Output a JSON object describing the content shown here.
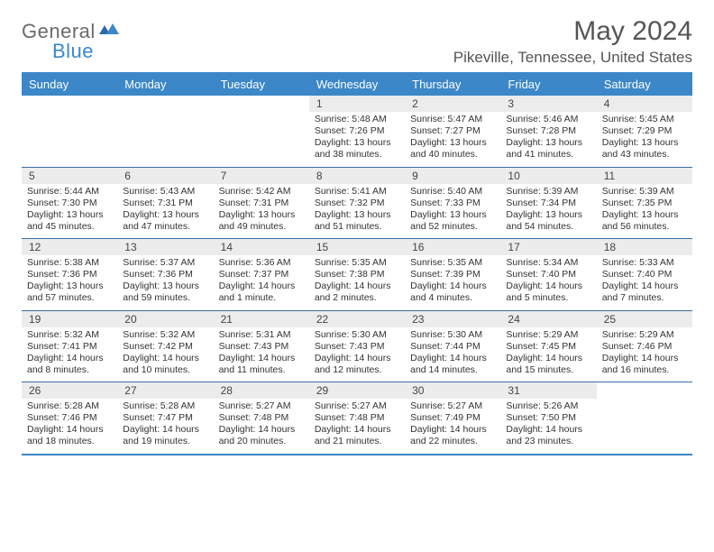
{
  "logo": {
    "text1": "General",
    "text2": "Blue"
  },
  "title": "May 2024",
  "location": "Pikeville, Tennessee, United States",
  "colors": {
    "brand": "#3b87c8",
    "headerText": "#ffffff",
    "dayNumBg": "#ececec",
    "border": "#3b6fa0"
  },
  "dow": [
    "Sunday",
    "Monday",
    "Tuesday",
    "Wednesday",
    "Thursday",
    "Friday",
    "Saturday"
  ],
  "weeks": [
    [
      null,
      null,
      null,
      {
        "n": "1",
        "sr": "5:48 AM",
        "ss": "7:26 PM",
        "dl": "13 hours and 38 minutes."
      },
      {
        "n": "2",
        "sr": "5:47 AM",
        "ss": "7:27 PM",
        "dl": "13 hours and 40 minutes."
      },
      {
        "n": "3",
        "sr": "5:46 AM",
        "ss": "7:28 PM",
        "dl": "13 hours and 41 minutes."
      },
      {
        "n": "4",
        "sr": "5:45 AM",
        "ss": "7:29 PM",
        "dl": "13 hours and 43 minutes."
      }
    ],
    [
      {
        "n": "5",
        "sr": "5:44 AM",
        "ss": "7:30 PM",
        "dl": "13 hours and 45 minutes."
      },
      {
        "n": "6",
        "sr": "5:43 AM",
        "ss": "7:31 PM",
        "dl": "13 hours and 47 minutes."
      },
      {
        "n": "7",
        "sr": "5:42 AM",
        "ss": "7:31 PM",
        "dl": "13 hours and 49 minutes."
      },
      {
        "n": "8",
        "sr": "5:41 AM",
        "ss": "7:32 PM",
        "dl": "13 hours and 51 minutes."
      },
      {
        "n": "9",
        "sr": "5:40 AM",
        "ss": "7:33 PM",
        "dl": "13 hours and 52 minutes."
      },
      {
        "n": "10",
        "sr": "5:39 AM",
        "ss": "7:34 PM",
        "dl": "13 hours and 54 minutes."
      },
      {
        "n": "11",
        "sr": "5:39 AM",
        "ss": "7:35 PM",
        "dl": "13 hours and 56 minutes."
      }
    ],
    [
      {
        "n": "12",
        "sr": "5:38 AM",
        "ss": "7:36 PM",
        "dl": "13 hours and 57 minutes."
      },
      {
        "n": "13",
        "sr": "5:37 AM",
        "ss": "7:36 PM",
        "dl": "13 hours and 59 minutes."
      },
      {
        "n": "14",
        "sr": "5:36 AM",
        "ss": "7:37 PM",
        "dl": "14 hours and 1 minute."
      },
      {
        "n": "15",
        "sr": "5:35 AM",
        "ss": "7:38 PM",
        "dl": "14 hours and 2 minutes."
      },
      {
        "n": "16",
        "sr": "5:35 AM",
        "ss": "7:39 PM",
        "dl": "14 hours and 4 minutes."
      },
      {
        "n": "17",
        "sr": "5:34 AM",
        "ss": "7:40 PM",
        "dl": "14 hours and 5 minutes."
      },
      {
        "n": "18",
        "sr": "5:33 AM",
        "ss": "7:40 PM",
        "dl": "14 hours and 7 minutes."
      }
    ],
    [
      {
        "n": "19",
        "sr": "5:32 AM",
        "ss": "7:41 PM",
        "dl": "14 hours and 8 minutes."
      },
      {
        "n": "20",
        "sr": "5:32 AM",
        "ss": "7:42 PM",
        "dl": "14 hours and 10 minutes."
      },
      {
        "n": "21",
        "sr": "5:31 AM",
        "ss": "7:43 PM",
        "dl": "14 hours and 11 minutes."
      },
      {
        "n": "22",
        "sr": "5:30 AM",
        "ss": "7:43 PM",
        "dl": "14 hours and 12 minutes."
      },
      {
        "n": "23",
        "sr": "5:30 AM",
        "ss": "7:44 PM",
        "dl": "14 hours and 14 minutes."
      },
      {
        "n": "24",
        "sr": "5:29 AM",
        "ss": "7:45 PM",
        "dl": "14 hours and 15 minutes."
      },
      {
        "n": "25",
        "sr": "5:29 AM",
        "ss": "7:46 PM",
        "dl": "14 hours and 16 minutes."
      }
    ],
    [
      {
        "n": "26",
        "sr": "5:28 AM",
        "ss": "7:46 PM",
        "dl": "14 hours and 18 minutes."
      },
      {
        "n": "27",
        "sr": "5:28 AM",
        "ss": "7:47 PM",
        "dl": "14 hours and 19 minutes."
      },
      {
        "n": "28",
        "sr": "5:27 AM",
        "ss": "7:48 PM",
        "dl": "14 hours and 20 minutes."
      },
      {
        "n": "29",
        "sr": "5:27 AM",
        "ss": "7:48 PM",
        "dl": "14 hours and 21 minutes."
      },
      {
        "n": "30",
        "sr": "5:27 AM",
        "ss": "7:49 PM",
        "dl": "14 hours and 22 minutes."
      },
      {
        "n": "31",
        "sr": "5:26 AM",
        "ss": "7:50 PM",
        "dl": "14 hours and 23 minutes."
      },
      null
    ]
  ],
  "labels": {
    "sunrise": "Sunrise:",
    "sunset": "Sunset:",
    "daylight": "Daylight:"
  }
}
